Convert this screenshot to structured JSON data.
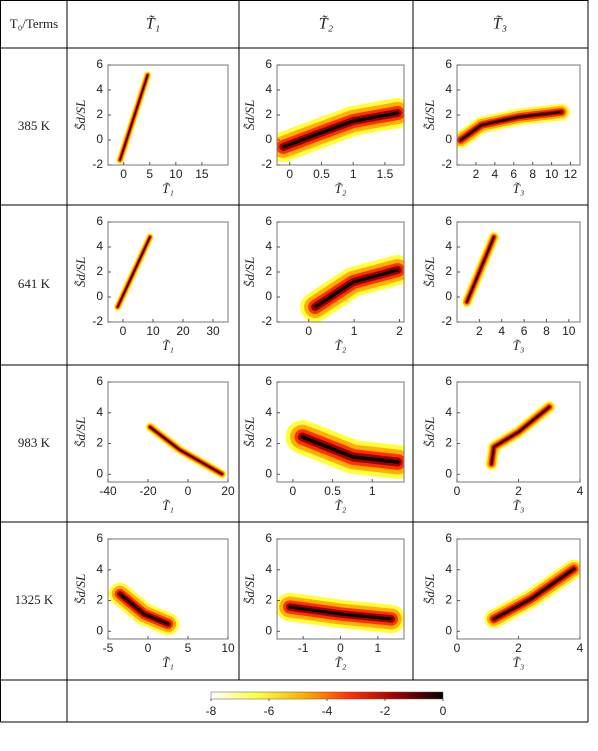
{
  "table": {
    "corner": "T₀/Terms",
    "columns": [
      "T̃₁",
      "T̃₂",
      "T̃₃"
    ],
    "rows": [
      "385 K",
      "641 K",
      "983 K",
      "1325 K"
    ]
  },
  "chart_data": [
    {
      "type": "density",
      "xlabel": "T̃₁",
      "ylabel": "S̃d/SL",
      "xlim": [
        -3,
        20
      ],
      "xticks": [
        0,
        5,
        10,
        15
      ],
      "ylim": [
        -2,
        6
      ],
      "yticks": [
        -2,
        0,
        2,
        4,
        6
      ]
    },
    {
      "type": "density",
      "xlabel": "T̃₂",
      "ylabel": "S̃d/SL",
      "xlim": [
        -0.2,
        1.8
      ],
      "xticks": [
        0,
        0.5,
        1,
        1.5
      ],
      "ylim": [
        -2,
        6
      ],
      "yticks": [
        -2,
        0,
        2,
        4,
        6
      ]
    },
    {
      "type": "density",
      "xlabel": "T̃₃",
      "ylabel": "S̃d/SL",
      "xlim": [
        0,
        13
      ],
      "xticks": [
        2,
        4,
        6,
        8,
        10,
        12
      ],
      "ylim": [
        -2,
        6
      ],
      "yticks": [
        -2,
        0,
        2,
        4,
        6
      ]
    },
    {
      "type": "density",
      "xlabel": "T̃₁",
      "ylabel": "S̃d/SL",
      "xlim": [
        -5,
        35
      ],
      "xticks": [
        0,
        10,
        20,
        30
      ],
      "ylim": [
        -2,
        6
      ],
      "yticks": [
        -2,
        0,
        2,
        4,
        6
      ]
    },
    {
      "type": "density",
      "xlabel": "T̃₂",
      "ylabel": "S̃d/SL",
      "xlim": [
        -0.7,
        2.1
      ],
      "xticks": [
        0,
        1,
        2
      ],
      "ylim": [
        -2,
        6
      ],
      "yticks": [
        -2,
        0,
        2,
        4,
        6
      ]
    },
    {
      "type": "density",
      "xlabel": "T̃₃",
      "ylabel": "S̃d/SL",
      "xlim": [
        0,
        11
      ],
      "xticks": [
        2,
        4,
        6,
        8,
        10
      ],
      "ylim": [
        -2,
        6
      ],
      "yticks": [
        -2,
        0,
        2,
        4,
        6
      ]
    },
    {
      "type": "density",
      "xlabel": "T̃₁",
      "ylabel": "S̃d/SL",
      "xlim": [
        -40,
        20
      ],
      "xticks": [
        -40,
        -20,
        0,
        20
      ],
      "ylim": [
        -0.5,
        6
      ],
      "yticks": [
        0,
        2,
        4,
        6
      ]
    },
    {
      "type": "density",
      "xlabel": "T̃₂",
      "ylabel": "S̃d/SL",
      "xlim": [
        -0.2,
        1.4
      ],
      "xticks": [
        0,
        0.5,
        1
      ],
      "ylim": [
        -0.5,
        6
      ],
      "yticks": [
        0,
        2,
        4,
        6
      ]
    },
    {
      "type": "density",
      "xlabel": "T̃₃",
      "ylabel": "S̃d/SL",
      "xlim": [
        0,
        4
      ],
      "xticks": [
        0,
        2,
        4
      ],
      "ylim": [
        -0.5,
        6
      ],
      "yticks": [
        0,
        2,
        4,
        6
      ]
    },
    {
      "type": "density",
      "xlabel": "T̃₁",
      "ylabel": "S̃d/SL",
      "xlim": [
        -5,
        10
      ],
      "xticks": [
        -5,
        0,
        5,
        10
      ],
      "ylim": [
        -0.5,
        6
      ],
      "yticks": [
        0,
        2,
        4,
        6
      ]
    },
    {
      "type": "density",
      "xlabel": "T̃₂",
      "ylabel": "S̃d/SL",
      "xlim": [
        -1.7,
        1.7
      ],
      "xticks": [
        -1,
        0,
        1
      ],
      "ylim": [
        -0.5,
        6
      ],
      "yticks": [
        0,
        2,
        4,
        6
      ]
    },
    {
      "type": "density",
      "xlabel": "T̃₃",
      "ylabel": "S̃d/SL",
      "xlim": [
        0,
        4
      ],
      "xticks": [
        0,
        2,
        4
      ],
      "ylim": [
        -0.5,
        6
      ],
      "yticks": [
        0,
        2,
        4,
        6
      ]
    },
    {
      "type": "colorbar",
      "xlim": [
        -8,
        0
      ],
      "xticks": [
        -8,
        -6,
        -4,
        -2,
        0
      ],
      "colors": [
        "#ffffff",
        "#ffff40",
        "#ffb000",
        "#ff3000",
        "#a00000",
        "#000000"
      ]
    }
  ]
}
